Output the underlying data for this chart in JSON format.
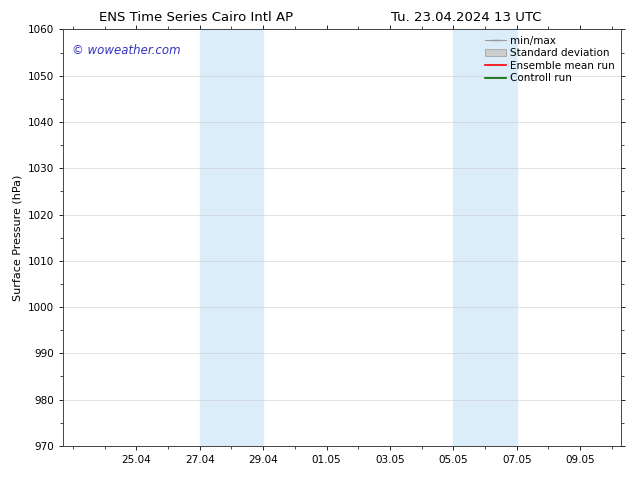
{
  "title_left": "ENS Time Series Cairo Intl AP",
  "title_right": "Tu. 23.04.2024 13 UTC",
  "ylabel": "Surface Pressure (hPa)",
  "ylim": [
    970,
    1060
  ],
  "yticks": [
    970,
    980,
    990,
    1000,
    1010,
    1020,
    1030,
    1040,
    1050,
    1060
  ],
  "x_start_day": 0,
  "x_end_day": 17,
  "xlim": [
    -0.3,
    17.3
  ],
  "xtick_positions": [
    2,
    4,
    6,
    8,
    10,
    12,
    14,
    16
  ],
  "xtick_labels": [
    "25.04",
    "27.04",
    "29.04",
    "01.05",
    "03.05",
    "05.05",
    "07.05",
    "09.05"
  ],
  "shaded_regions": [
    {
      "start": 4,
      "end": 6
    },
    {
      "start": 12,
      "end": 14
    }
  ],
  "shaded_color": "#daedf8",
  "background_color": "#ffffff",
  "watermark_text": "© woweather.com",
  "watermark_color": "#3333bb",
  "watermark_fontsize": 8.5,
  "legend_items": [
    {
      "label": "min/max",
      "color": "#999999",
      "type": "errorbar"
    },
    {
      "label": "Standard deviation",
      "color": "#cccccc",
      "type": "rect"
    },
    {
      "label": "Ensemble mean run",
      "color": "#ff0000",
      "type": "line"
    },
    {
      "label": "Controll run",
      "color": "#006600",
      "type": "line"
    }
  ],
  "title_fontsize": 9.5,
  "tick_fontsize": 7.5,
  "ylabel_fontsize": 8,
  "legend_fontsize": 7.5
}
